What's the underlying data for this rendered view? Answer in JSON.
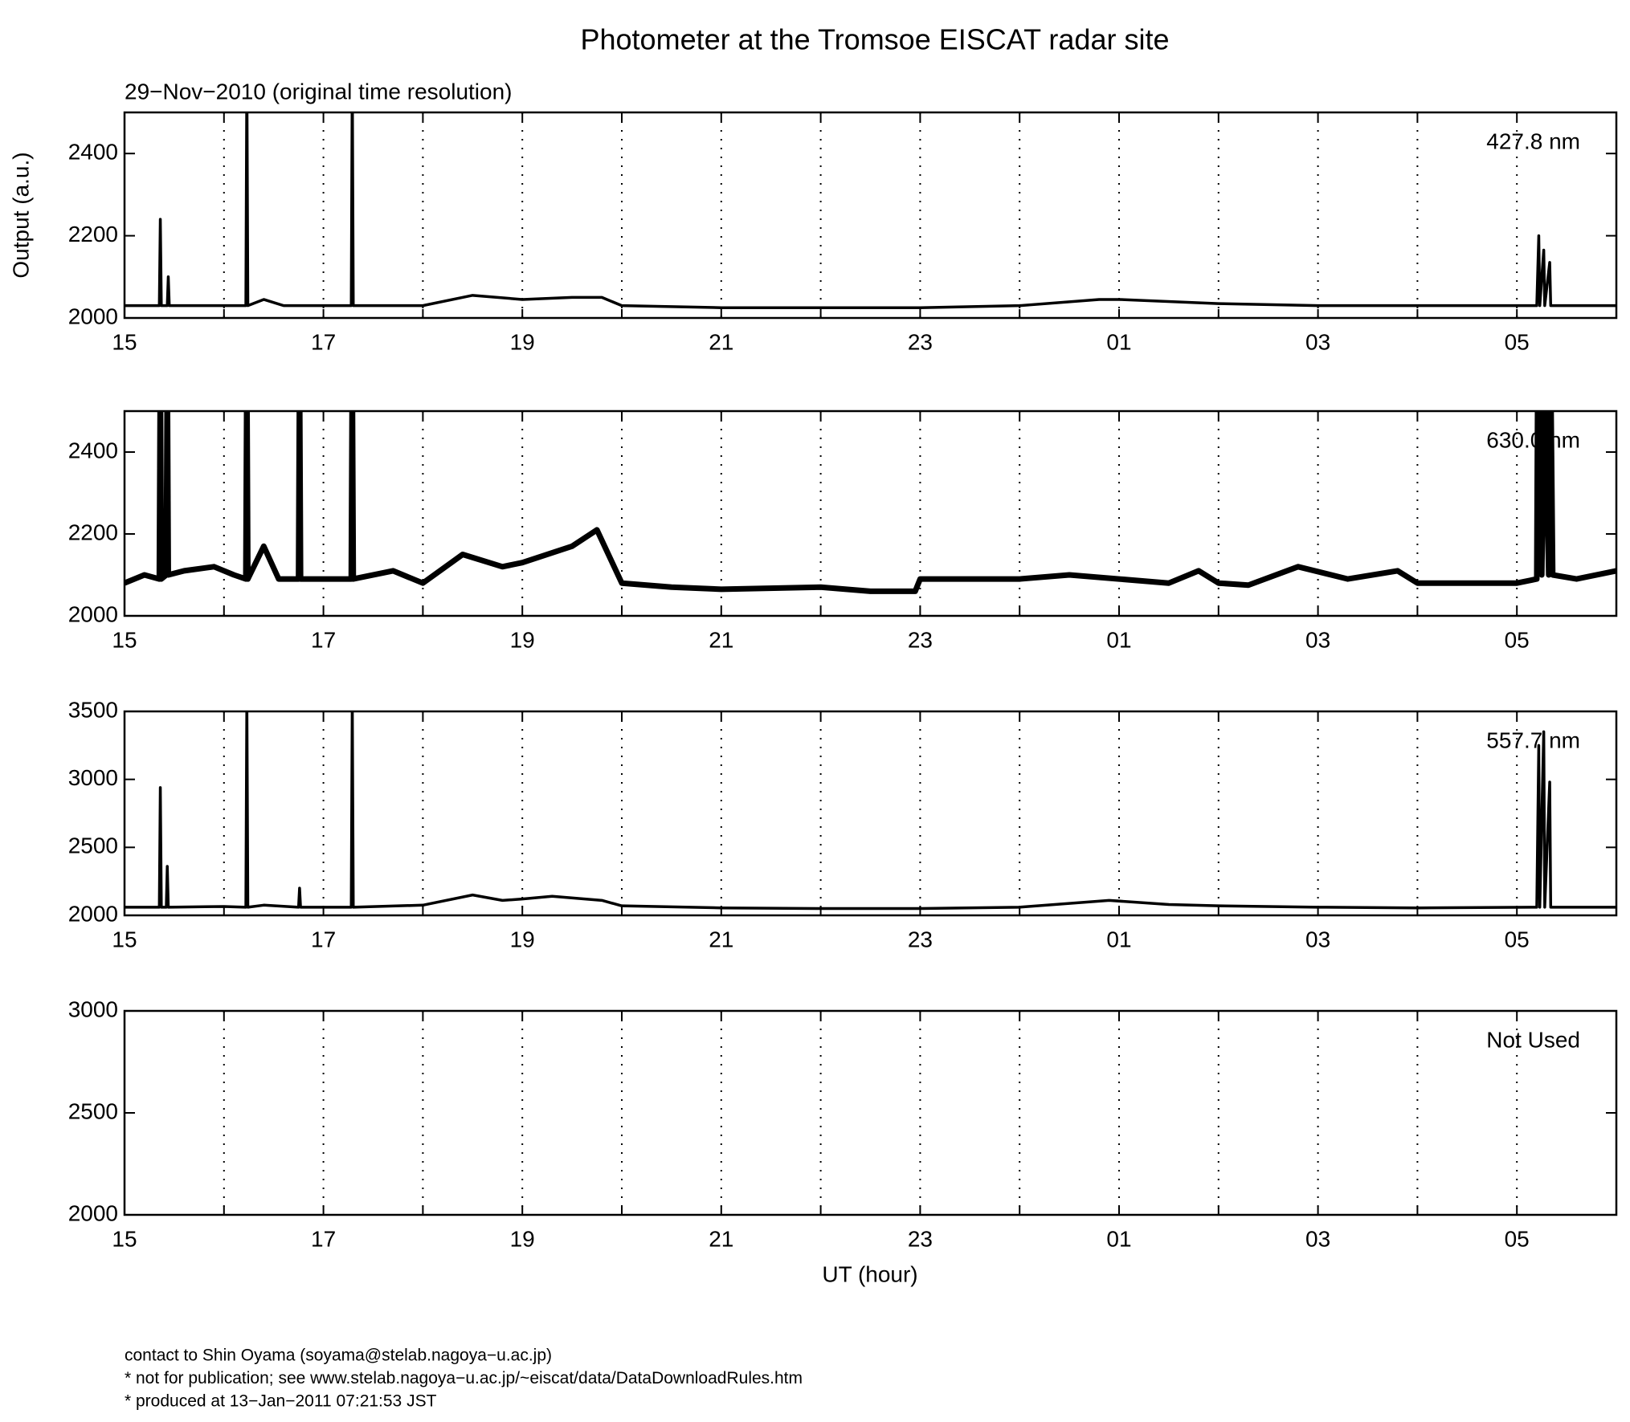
{
  "chart_data": [
    {
      "type": "line",
      "title": "Photometer at the Tromsoe EISCAT radar site",
      "subtitle": "29−Nov−2010 (original time resolution)",
      "ylabel": "Output (a.u.)",
      "xlim": [
        15,
        30
      ],
      "ylim": [
        2000,
        2500
      ],
      "yticks": [
        2000,
        2200,
        2400
      ],
      "xticks": [
        15,
        17,
        19,
        21,
        23,
        {
          "value": 25,
          "label": "01"
        },
        {
          "value": 27,
          "label": "03"
        },
        {
          "value": 29,
          "label": "05"
        }
      ],
      "xminorticks": [
        16,
        18,
        20,
        22,
        24,
        26,
        28
      ],
      "grid": true,
      "x": [
        15,
        15.35,
        15.36,
        15.37,
        15.43,
        15.44,
        15.45,
        16,
        16.22,
        16.23,
        16.24,
        16.4,
        16.6,
        16.8,
        17.28,
        17.29,
        17.3,
        18,
        18.5,
        19,
        19.5,
        19.8,
        20,
        21,
        22,
        23,
        24,
        24.8,
        25,
        26,
        27,
        28,
        29.2,
        29.22,
        29.23,
        29.27,
        29.28,
        29.33,
        29.34,
        30
      ],
      "series": [
        {
          "name": "427.8 nm",
          "color": "#000000",
          "values": [
            2030,
            2030,
            2240,
            2030,
            2030,
            2100,
            2030,
            2030,
            2030,
            2600,
            2030,
            2045,
            2030,
            2030,
            2030,
            2600,
            2030,
            2030,
            2055,
            2045,
            2050,
            2050,
            2030,
            2025,
            2025,
            2025,
            2030,
            2045,
            2045,
            2035,
            2030,
            2030,
            2030,
            2200,
            2030,
            2165,
            2030,
            2135,
            2030,
            2030
          ]
        }
      ]
    },
    {
      "type": "line",
      "xlim": [
        15,
        30
      ],
      "ylim": [
        2000,
        2500
      ],
      "yticks": [
        2000,
        2200,
        2400
      ],
      "xticks": [
        15,
        17,
        19,
        21,
        23,
        {
          "value": 25,
          "label": "01"
        },
        {
          "value": 27,
          "label": "03"
        },
        {
          "value": 29,
          "label": "05"
        }
      ],
      "xminorticks": [
        16,
        18,
        20,
        22,
        24,
        26,
        28
      ],
      "grid": true,
      "x": [
        15,
        15.2,
        15.35,
        15.36,
        15.37,
        15.42,
        15.43,
        15.44,
        15.6,
        15.9,
        16.1,
        16.22,
        16.23,
        16.24,
        16.4,
        16.55,
        16.75,
        16.76,
        16.77,
        17,
        17.28,
        17.29,
        17.3,
        17.7,
        18,
        18.4,
        18.8,
        19,
        19.5,
        19.75,
        20,
        20.5,
        21,
        22,
        22.5,
        22.95,
        23,
        24,
        24.5,
        25,
        25.5,
        25.8,
        26,
        26.3,
        26.8,
        27.3,
        27.8,
        28,
        28.5,
        29,
        29.2,
        29.21,
        29.25,
        29.28,
        29.32,
        29.34,
        29.36,
        29.6,
        30
      ],
      "series": [
        {
          "name": "630.0 nm",
          "color": "#000000",
          "values": [
            2080,
            2100,
            2090,
            2600,
            2090,
            2100,
            2600,
            2100,
            2110,
            2120,
            2100,
            2090,
            2600,
            2090,
            2170,
            2090,
            2090,
            2600,
            2090,
            2090,
            2090,
            2600,
            2090,
            2110,
            2080,
            2150,
            2120,
            2130,
            2170,
            2210,
            2080,
            2070,
            2065,
            2070,
            2060,
            2060,
            2090,
            2090,
            2100,
            2090,
            2080,
            2110,
            2080,
            2075,
            2120,
            2090,
            2110,
            2080,
            2080,
            2080,
            2090,
            2600,
            2100,
            2600,
            2100,
            2600,
            2100,
            2090,
            2110
          ]
        }
      ]
    },
    {
      "type": "line",
      "xlim": [
        15,
        30
      ],
      "ylim": [
        2000,
        3500
      ],
      "yticks": [
        2000,
        2500,
        3000,
        3500
      ],
      "xticks": [
        15,
        17,
        19,
        21,
        23,
        {
          "value": 25,
          "label": "01"
        },
        {
          "value": 27,
          "label": "03"
        },
        {
          "value": 29,
          "label": "05"
        }
      ],
      "xminorticks": [
        16,
        18,
        20,
        22,
        24,
        26,
        28
      ],
      "grid": true,
      "x": [
        15,
        15.35,
        15.36,
        15.37,
        15.42,
        15.43,
        15.44,
        16,
        16.22,
        16.23,
        16.24,
        16.4,
        16.75,
        16.76,
        16.77,
        17.28,
        17.29,
        17.3,
        18,
        18.5,
        18.8,
        19,
        19.3,
        19.8,
        20,
        21,
        22,
        23,
        24,
        24.9,
        25.5,
        26,
        27,
        28,
        29.2,
        29.22,
        29.23,
        29.27,
        29.28,
        29.33,
        29.34,
        30
      ],
      "series": [
        {
          "name": "557.7 nm",
          "color": "#000000",
          "values": [
            2060,
            2060,
            2940,
            2060,
            2060,
            2360,
            2060,
            2065,
            2060,
            3600,
            2060,
            2075,
            2060,
            2200,
            2060,
            2060,
            3600,
            2060,
            2075,
            2150,
            2110,
            2120,
            2140,
            2110,
            2070,
            2055,
            2050,
            2050,
            2060,
            2110,
            2080,
            2070,
            2060,
            2055,
            2060,
            3250,
            2060,
            3350,
            2060,
            2980,
            2060,
            2060
          ]
        }
      ]
    },
    {
      "type": "line",
      "annotation": "Not Used",
      "xlabel": "UT (hour)",
      "xlim": [
        15,
        30
      ],
      "ylim": [
        2000,
        3000
      ],
      "yticks": [
        2000,
        2500,
        3000
      ],
      "xticks": [
        15,
        17,
        19,
        21,
        23,
        {
          "value": 25,
          "label": "01"
        },
        {
          "value": 27,
          "label": "03"
        },
        {
          "value": 29,
          "label": "05"
        }
      ],
      "xminorticks": [
        16,
        18,
        20,
        22,
        24,
        26,
        28
      ],
      "grid": true
    }
  ],
  "footer": [
    "contact to Shin Oyama (soyama@stelab.nagoya−u.ac.jp)",
    "* not for publication; see www.stelab.nagoya−u.ac.jp/~eiscat/data/DataDownloadRules.htm",
    "* produced at 13−Jan−2011 07:21:53 JST"
  ]
}
